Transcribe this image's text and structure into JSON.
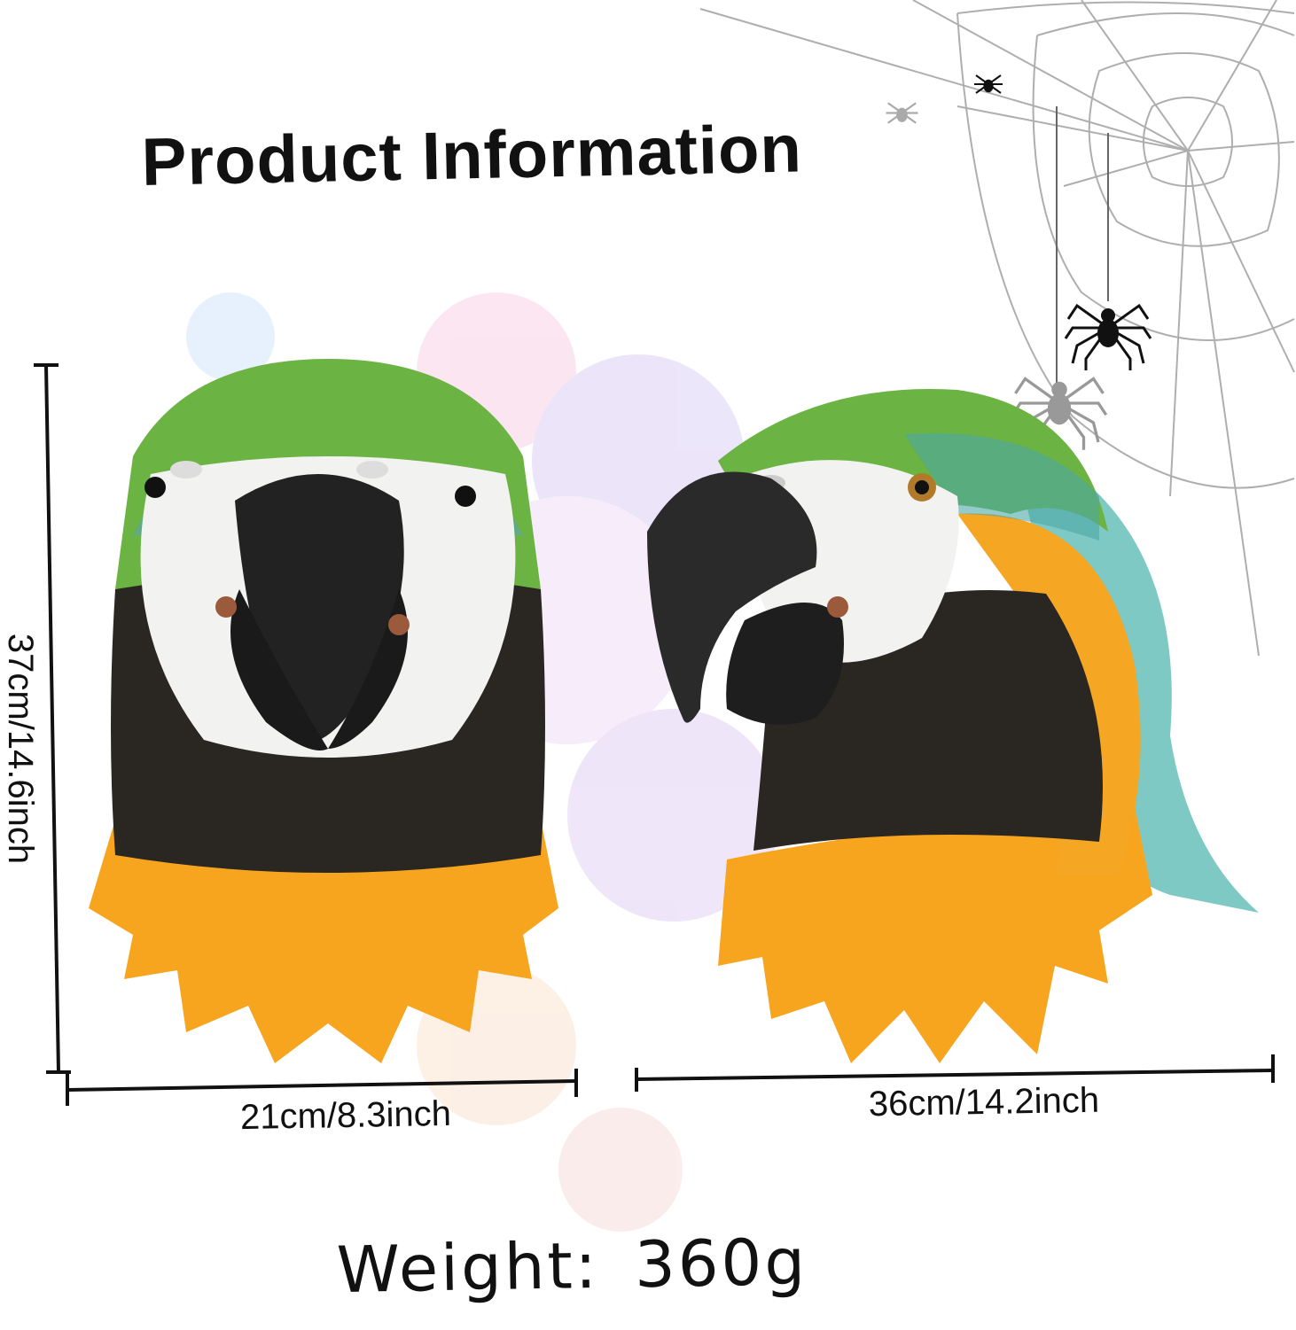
{
  "title": "Product Information",
  "dimensions": {
    "height_label": "37cm/14.6inch",
    "front_width_label": "21cm/8.3inch",
    "side_width_label": "36cm/14.2inch"
  },
  "weight": {
    "label": "Weight:",
    "value": "360g"
  },
  "colors": {
    "green": "#6bb343",
    "orange": "#f7a51e",
    "black_feathers": "#2a2622",
    "face_white": "#f2f2f0",
    "beak": "#222222",
    "teal": "#7fc9c4"
  }
}
